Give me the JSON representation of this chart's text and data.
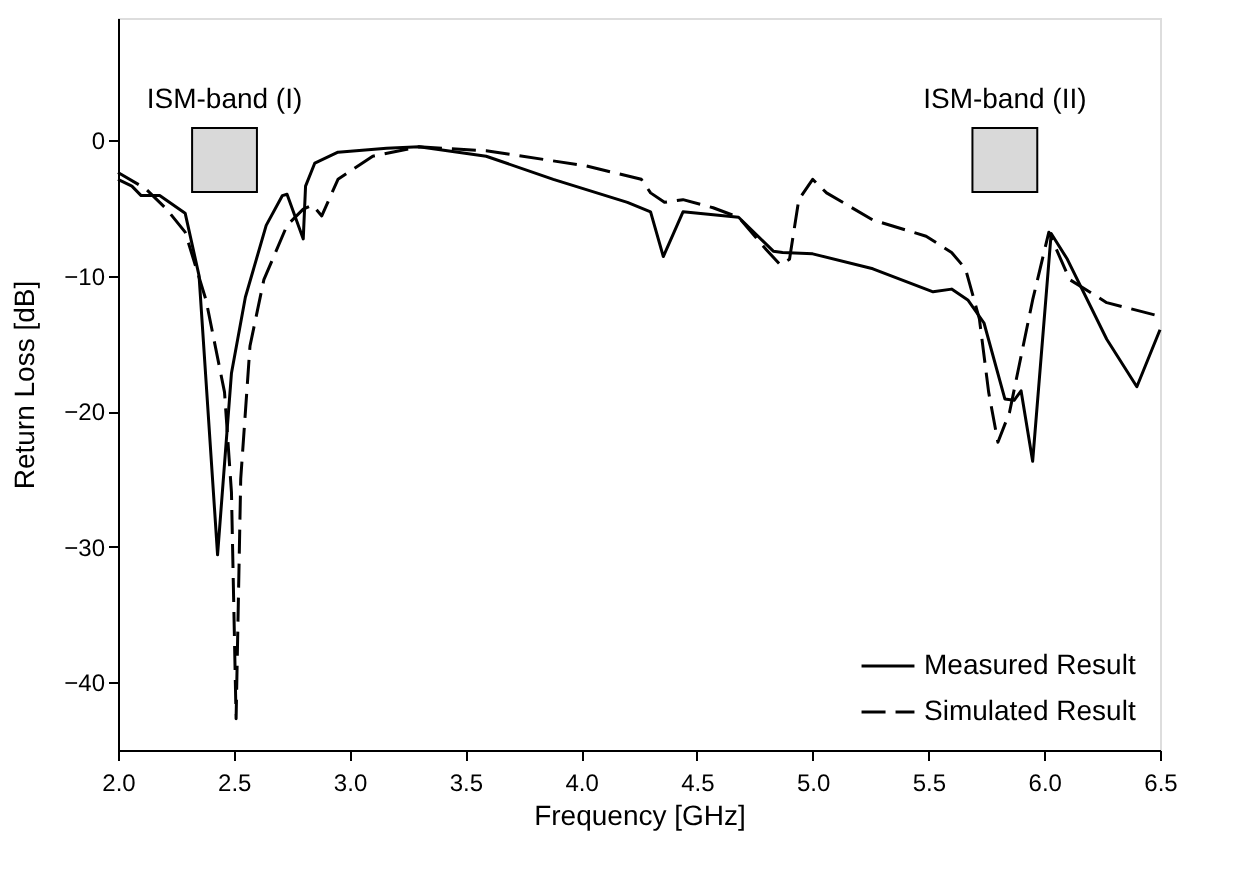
{
  "chart_data": {
    "type": "line",
    "xlabel": "Frequency [GHz]",
    "ylabel": "Return Loss [dB]",
    "xlim": [
      2.0,
      6.5
    ],
    "ylim": [
      -45,
      9
    ],
    "xticks": [
      {
        "value": 2,
        "label": "2.0"
      },
      2.5,
      {
        "value": 3,
        "label": "3.0"
      },
      3.5,
      {
        "value": 4,
        "label": "4.0"
      },
      4.5,
      {
        "value": 5,
        "label": "5.0"
      },
      5.5,
      {
        "value": 6,
        "label": "6.0"
      },
      6.5
    ],
    "yticks": [
      0,
      -10,
      -20,
      -30,
      -40
    ],
    "grid": false,
    "legend": "bottom right",
    "marker": "none",
    "series": [
      {
        "name": "Measured Result",
        "color": "#000000",
        "line_style": "solid",
        "x": [
          2.0,
          2.06,
          2.1,
          2.18,
          2.29,
          2.35,
          2.43,
          2.49,
          2.55,
          2.64,
          2.71,
          2.73,
          2.8,
          2.81,
          2.85,
          2.95,
          3.16,
          3.3,
          3.59,
          3.88,
          4.2,
          4.3,
          4.355,
          4.44,
          4.68,
          4.83,
          4.87,
          5.0,
          5.26,
          5.52,
          5.6,
          5.67,
          5.74,
          5.83,
          5.87,
          5.9,
          5.95,
          6.03,
          6.1,
          6.27,
          6.4,
          6.5
        ],
        "values": [
          -2.9,
          -3.4,
          -4.1,
          -4.1,
          -5.4,
          -10,
          -30.6,
          -17.2,
          -11.6,
          -6.3,
          -4.1,
          -4.0,
          -7.3,
          -3.4,
          -1.7,
          -0.9,
          -0.6,
          -0.5,
          -1.2,
          -2.9,
          -4.6,
          -5.3,
          -8.6,
          -5.3,
          -5.7,
          -8.2,
          -8.3,
          -8.4,
          -9.5,
          -11.2,
          -11.0,
          -11.8,
          -13.5,
          -19.1,
          -19.2,
          -18.5,
          -23.7,
          -6.9,
          -8.8,
          -14.7,
          -18.2,
          -14.0
        ]
      },
      {
        "name": "Simulated Result",
        "color": "#000000",
        "line_style": "dashed",
        "x": [
          2.0,
          2.12,
          2.21,
          2.29,
          2.38,
          2.46,
          2.49,
          2.51,
          2.53,
          2.57,
          2.63,
          2.73,
          2.8,
          2.84,
          2.88,
          2.95,
          3.1,
          3.3,
          3.59,
          4.02,
          4.26,
          4.3,
          4.36,
          4.44,
          4.57,
          4.68,
          4.8,
          4.86,
          4.9,
          4.94,
          5.0,
          5.06,
          5.26,
          5.49,
          5.6,
          5.66,
          5.72,
          5.76,
          5.8,
          5.85,
          5.95,
          6.02,
          6.11,
          6.27,
          6.5
        ],
        "values": [
          -2.4,
          -3.6,
          -5.1,
          -6.8,
          -11.8,
          -18.6,
          -26,
          -42.7,
          -25,
          -15.2,
          -10.3,
          -6.3,
          -5.1,
          -4.8,
          -5.6,
          -2.9,
          -1.2,
          -0.5,
          -0.8,
          -1.9,
          -2.9,
          -3.9,
          -4.6,
          -4.4,
          -5.0,
          -5.7,
          -8.1,
          -9.2,
          -8.8,
          -4.4,
          -2.9,
          -3.9,
          -5.9,
          -7.1,
          -8.3,
          -9.5,
          -13.2,
          -18.6,
          -22.3,
          -20.1,
          -11.8,
          -6.8,
          -10.3,
          -12.0,
          -13.0
        ]
      }
    ],
    "bands": [
      {
        "axis": "x",
        "from": 2.32,
        "to": 2.6,
        "label": "ISM-band (I)",
        "color": "#d9d9d9"
      },
      {
        "axis": "x",
        "from": 5.69,
        "to": 5.97,
        "label": "ISM-band (II)",
        "color": "#d9d9d9"
      }
    ]
  }
}
